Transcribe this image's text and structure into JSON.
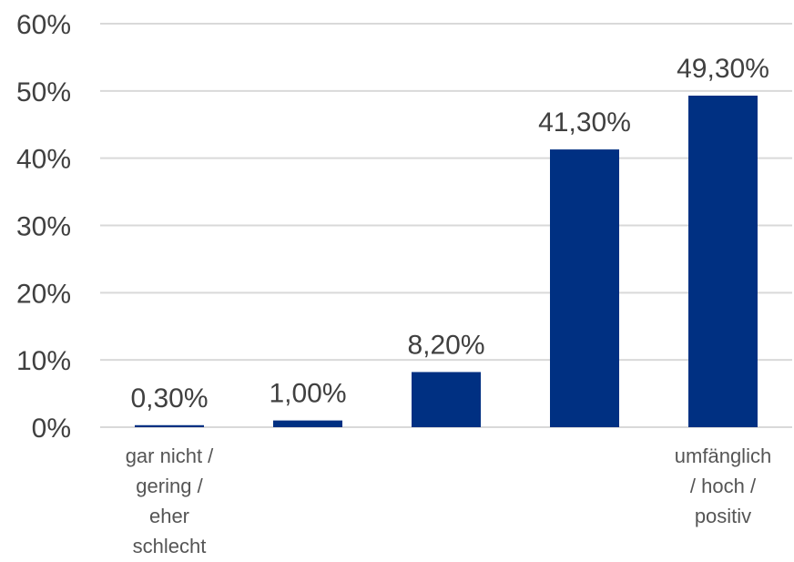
{
  "chart_data": {
    "type": "bar",
    "categories": [
      "gar nicht / gering / eher schlecht",
      "",
      "",
      "",
      "umfänglich / hoch / positiv"
    ],
    "category_lines": [
      [
        "gar nicht /",
        "gering /",
        "eher",
        "schlecht"
      ],
      [],
      [],
      [],
      [
        "umfänglich",
        "/ hoch /",
        "positiv"
      ]
    ],
    "values": [
      0.3,
      1.0,
      8.2,
      41.3,
      49.3
    ],
    "data_labels": [
      "0,30%",
      "1,00%",
      "8,20%",
      "41,30%",
      "49,30%"
    ],
    "y_ticks": [
      "0%",
      "10%",
      "20%",
      "30%",
      "40%",
      "50%",
      "60%"
    ],
    "ylim": [
      0,
      60
    ],
    "grid": true,
    "legend": "none",
    "bar_color": "#003082",
    "title": "",
    "xlabel": "",
    "ylabel": ""
  }
}
